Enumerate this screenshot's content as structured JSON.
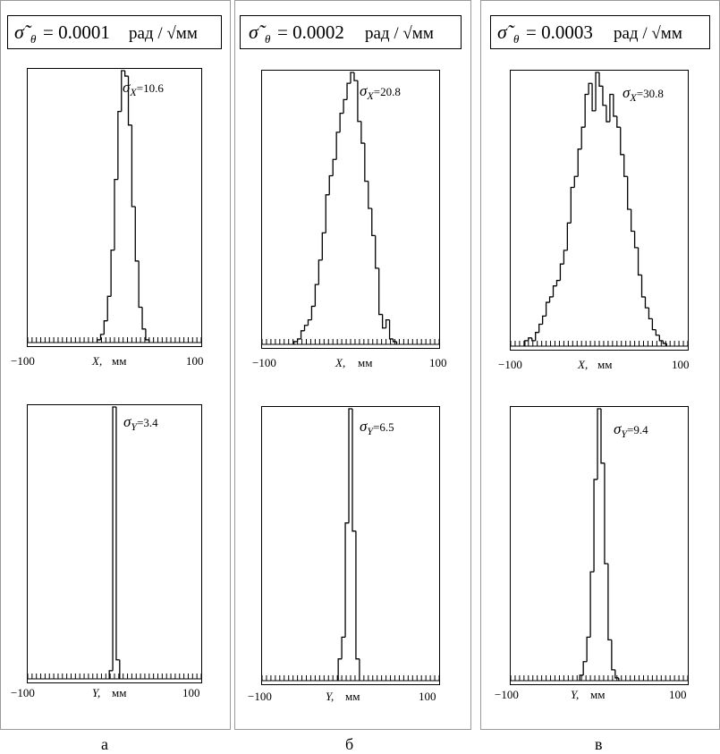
{
  "panels": [
    {
      "letter": "а",
      "header": {
        "sym": "σ̃",
        "sub": "θ",
        "eq": "= 0.0001",
        "unit": "рад / √мм"
      }
    },
    {
      "letter": "б",
      "header": {
        "sym": "σ̃",
        "sub": "θ",
        "eq": "= 0.0002",
        "unit": "рад / √мм"
      }
    },
    {
      "letter": "в",
      "header": {
        "sym": "σ̃",
        "sub": "θ",
        "eq": "= 0.0003",
        "unit": "рад / √мм"
      }
    }
  ],
  "axis": {
    "xmin_label": "−100",
    "xmax_label": "100",
    "unit_label": "мм",
    "x_name": "X,",
    "y_name": "Y,"
  },
  "chart_data": [
    {
      "type": "histogram",
      "panel": "а",
      "variable": "X",
      "xlim": [
        -100,
        100
      ],
      "sigma_symbol": "σ",
      "sigma_sub": "X",
      "sigma_value": "=10.6",
      "bin_edges_start": -20,
      "bin_width": 4,
      "values": [
        1,
        3,
        8,
        17,
        34,
        60,
        85,
        100,
        98,
        80,
        50,
        30,
        13,
        5,
        1
      ]
    },
    {
      "type": "histogram",
      "panel": "а",
      "variable": "Y",
      "xlim": [
        -100,
        100
      ],
      "sigma_symbol": "σ",
      "sigma_sub": "Y",
      "sigma_value": "=3.4",
      "bin_edges_start": -6,
      "bin_width": 4,
      "values": [
        3,
        100,
        7
      ]
    },
    {
      "type": "histogram",
      "panel": "б",
      "variable": "X",
      "xlim": [
        -100,
        100
      ],
      "sigma_symbol": "σ",
      "sigma_sub": "X",
      "sigma_value": "=20.8",
      "bin_edges_start": -64,
      "bin_width": 4,
      "values": [
        1,
        2,
        5,
        7,
        9,
        14,
        22,
        31,
        41,
        55,
        62,
        68,
        78,
        85,
        90,
        96,
        100,
        97,
        82,
        74,
        60,
        50,
        40,
        28,
        11,
        6,
        9,
        2,
        1
      ]
    },
    {
      "type": "histogram",
      "panel": "б",
      "variable": "Y",
      "xlim": [
        -100,
        100
      ],
      "sigma_symbol": "σ",
      "sigma_sub": "Y",
      "sigma_value": "=6.5",
      "bin_edges_start": -14,
      "bin_width": 4,
      "values": [
        8,
        16,
        58,
        100,
        55,
        8
      ]
    },
    {
      "type": "histogram",
      "panel": "в",
      "variable": "X",
      "xlim": [
        -100,
        100
      ],
      "sigma_symbol": "σ",
      "sigma_sub": "X",
      "sigma_value": "=30.8",
      "bin_edges_start": -84,
      "bin_width": 4,
      "values": [
        2,
        3,
        2,
        5,
        8,
        11,
        16,
        18,
        22,
        24,
        30,
        35,
        45,
        58,
        62,
        72,
        80,
        92,
        96,
        86,
        100,
        95,
        88,
        82,
        92,
        84,
        80,
        70,
        62,
        50,
        42,
        36,
        26,
        18,
        14,
        10,
        6,
        4,
        2,
        1
      ]
    },
    {
      "type": "histogram",
      "panel": "в",
      "variable": "Y",
      "xlim": [
        -100,
        100
      ],
      "sigma_symbol": "σ",
      "sigma_sub": "Y",
      "sigma_value": "=9.4",
      "bin_edges_start": -22,
      "bin_width": 4,
      "values": [
        2,
        7,
        16,
        40,
        74,
        100,
        80,
        43,
        15,
        4,
        1
      ]
    }
  ]
}
